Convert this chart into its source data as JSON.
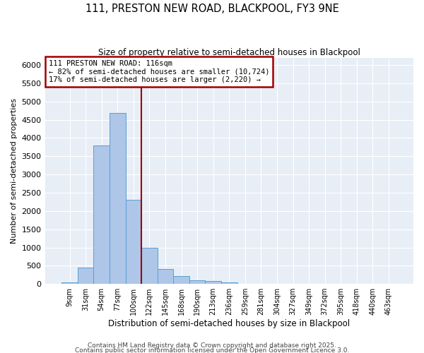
{
  "title1": "111, PRESTON NEW ROAD, BLACKPOOL, FY3 9NE",
  "title2": "Size of property relative to semi-detached houses in Blackpool",
  "xlabel": "Distribution of semi-detached houses by size in Blackpool",
  "ylabel": "Number of semi-detached properties",
  "footer1": "Contains HM Land Registry data © Crown copyright and database right 2025.",
  "footer2": "Contains public sector information licensed under the Open Government Licence 3.0.",
  "bin_labels": [
    "9sqm",
    "31sqm",
    "54sqm",
    "77sqm",
    "100sqm",
    "122sqm",
    "145sqm",
    "168sqm",
    "190sqm",
    "213sqm",
    "236sqm",
    "259sqm",
    "281sqm",
    "304sqm",
    "327sqm",
    "349sqm",
    "372sqm",
    "395sqm",
    "418sqm",
    "440sqm",
    "463sqm"
  ],
  "bar_heights": [
    50,
    450,
    3800,
    4680,
    2300,
    1000,
    410,
    210,
    100,
    75,
    50,
    10,
    5,
    0,
    0,
    0,
    0,
    0,
    0,
    0,
    0
  ],
  "bar_color": "#aec6e8",
  "bar_edgecolor": "#5a9fd4",
  "vline_x": 4.5,
  "vline_color": "#a00000",
  "annotation_line1": "111 PRESTON NEW ROAD: 116sqm",
  "annotation_line2": "← 82% of semi-detached houses are smaller (10,724)",
  "annotation_line3": "17% of semi-detached houses are larger (2,220) →",
  "bg_color": "#e8eef6",
  "grid_color": "#ffffff",
  "ylim": [
    0,
    6200
  ],
  "yticks": [
    0,
    500,
    1000,
    1500,
    2000,
    2500,
    3000,
    3500,
    4000,
    4500,
    5000,
    5500,
    6000
  ],
  "fig_width": 6.0,
  "fig_height": 5.0
}
